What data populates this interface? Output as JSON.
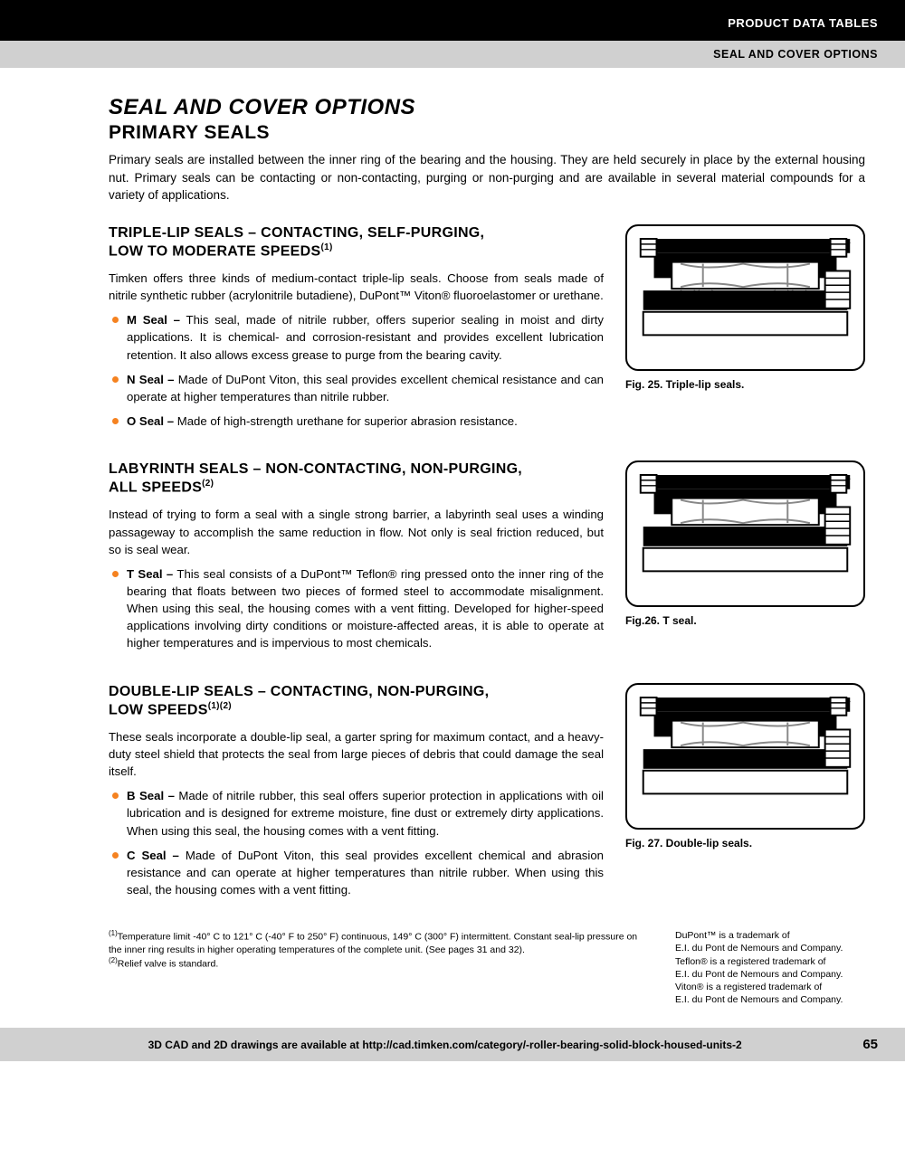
{
  "header": {
    "top_label": "PRODUCT DATA TABLES",
    "sub_label": "SEAL AND COVER OPTIONS"
  },
  "titles": {
    "main": "SEAL AND COVER OPTIONS",
    "sub": "PRIMARY SEALS"
  },
  "intro": "Primary seals are installed between the inner ring of the bearing and the housing. They are held securely in place by the external housing nut. Primary seals can be contacting or non-contacting, purging or non-purging and are available in several material compounds for a variety of applications.",
  "sections": [
    {
      "heading_line1": "TRIPLE-LIP SEALS – CONTACTING, SELF-PURGING,",
      "heading_line2": "LOW TO MODERATE SPEEDS",
      "heading_sup": "(1)",
      "body": "Timken offers three kinds of medium-contact triple-lip seals. Choose from seals made of nitrile synthetic rubber (acrylonitrile butadiene), DuPont™ Viton® fluoroelastomer or urethane.",
      "items": [
        {
          "bold": "M Seal –",
          "text": " This seal, made of nitrile rubber, offers superior sealing in moist and dirty applications. It is chemical- and corrosion-resistant and provides excellent lubrication retention. It also allows excess grease to purge from the bearing cavity."
        },
        {
          "bold": "N Seal –",
          "text": " Made of DuPont Viton, this seal provides excellent chemical resistance and can operate at higher temperatures than nitrile rubber."
        },
        {
          "bold": "O Seal –",
          "text": " Made of high-strength urethane for superior abrasion resistance."
        }
      ],
      "fig_caption": "Fig. 25. Triple-lip seals."
    },
    {
      "heading_line1": "LABYRINTH SEALS – NON-CONTACTING, NON-PURGING,",
      "heading_line2": "ALL SPEEDS",
      "heading_sup": "(2)",
      "body": "Instead of trying to form a seal with a single strong barrier, a labyrinth seal uses a winding passageway to accomplish the same reduction in flow. Not only is seal friction reduced, but so is seal wear.",
      "items": [
        {
          "bold": "T Seal –",
          "text": " This seal consists of a DuPont™ Teflon® ring pressed onto the inner ring of the bearing that floats between two pieces of formed steel to accommodate misalignment. When using this seal, the housing comes with a vent fitting. Developed for higher-speed applications involving dirty conditions or moisture-affected areas, it is able to operate at higher temperatures and is impervious to most chemicals."
        }
      ],
      "fig_caption": "Fig.26. T seal."
    },
    {
      "heading_line1": "DOUBLE-LIP SEALS – CONTACTING, NON-PURGING,",
      "heading_line2": "LOW SPEEDS",
      "heading_sup": "(1)(2)",
      "body": "These seals incorporate a double-lip seal, a garter spring for maximum contact, and a heavy-duty steel shield that protects the seal from large pieces of debris that could damage the seal itself.",
      "items": [
        {
          "bold": "B Seal –",
          "text": " Made of nitrile rubber, this seal offers superior protection in applications with oil lubrication and is designed for extreme moisture, fine dust or extremely dirty applications. When using this seal, the housing comes with a vent fitting."
        },
        {
          "bold": "C Seal –",
          "text": " Made of DuPont Viton, this seal provides excellent chemical and abrasion resistance and can operate at higher temperatures than nitrile rubber. When using this seal, the housing comes with a vent fitting."
        }
      ],
      "fig_caption": "Fig. 27. Double-lip seals."
    }
  ],
  "footnotes_left": [
    {
      "sup": "(1)",
      "text": "Temperature limit -40° C to 121° C (-40° F to 250° F) continuous, 149° C (300° F) intermittent. Constant seal-lip pressure on the inner ring results in higher operating temperatures of the complete unit. (See pages 31 and 32)."
    },
    {
      "sup": "(2)",
      "text": "Relief valve is standard."
    }
  ],
  "footnotes_right": "DuPont™ is a trademark of\nE.I. du Pont de Nemours and Company.\nTeflon® is a registered trademark of\nE.I. du Pont de Nemours and Company.\nViton® is a registered trademark of\nE.I. du Pont de Nemours and Company.",
  "footer": {
    "cad_text": "3D CAD and 2D drawings are available at http://cad.timken.com/category/-roller-bearing-solid-block-housed-units-2",
    "page_num": "65"
  },
  "colors": {
    "accent": "#f58220",
    "black": "#000000",
    "gray_bar": "#d0d0d0"
  }
}
